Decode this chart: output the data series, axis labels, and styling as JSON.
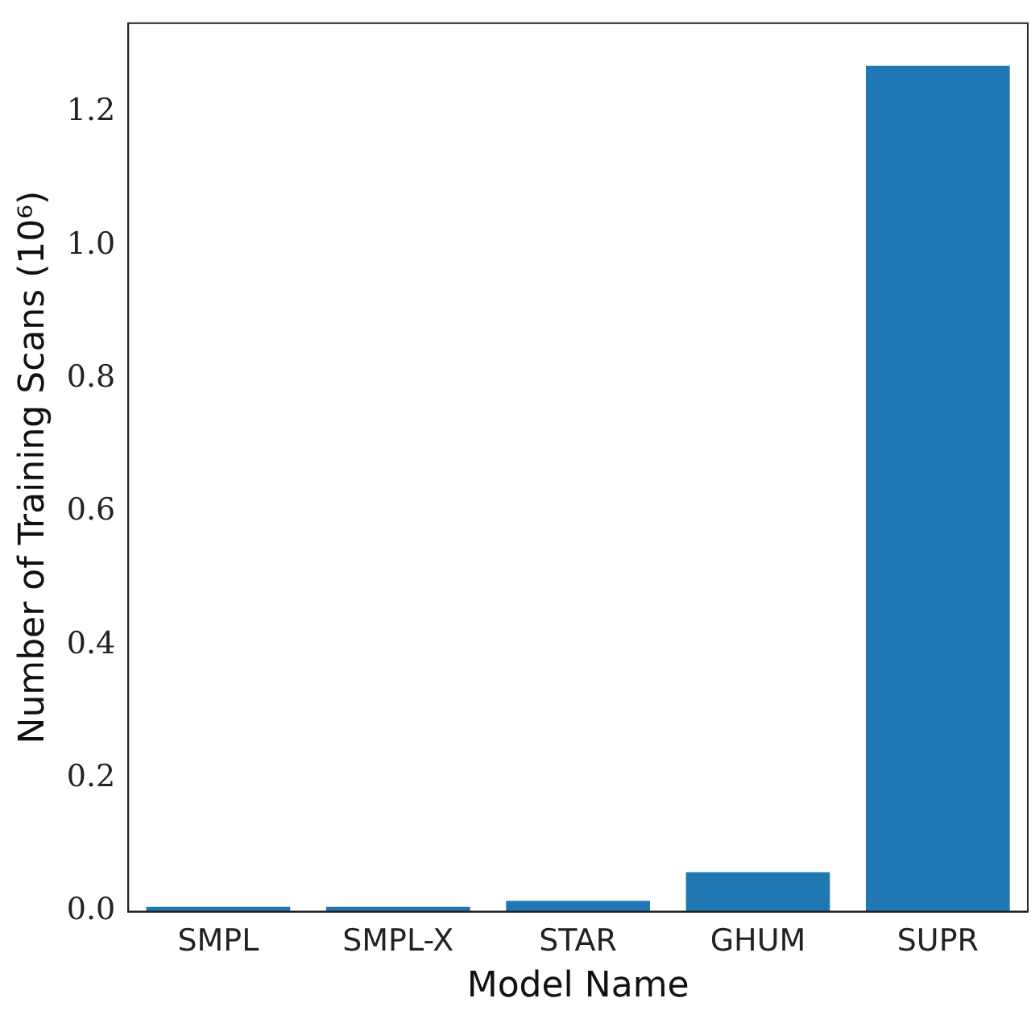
{
  "chart_data": {
    "type": "bar",
    "xlabel": "Model Name",
    "ylabel": "Number of Training Scans (10⁶)",
    "categories": [
      "SMPL",
      "SMPL-X",
      "STAR",
      "GHUM",
      "SUPR"
    ],
    "values": [
      0.007,
      0.007,
      0.016,
      0.059,
      1.27
    ],
    "color": "#1f77b4",
    "ylim": [
      0,
      1.334
    ],
    "yticks": [
      {
        "value": 0,
        "label": "0.0"
      },
      0.2,
      0.4,
      0.6,
      0.8,
      {
        "value": 1,
        "label": "1.0"
      },
      1.2
    ],
    "grid": false
  }
}
